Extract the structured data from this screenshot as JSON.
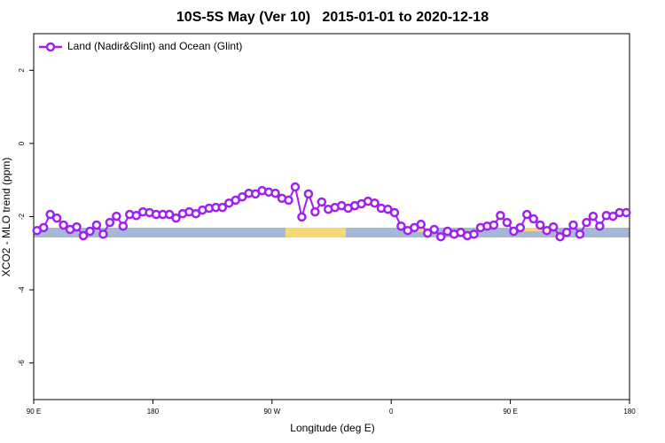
{
  "chart_data": {
    "type": "line",
    "title": "10S-5S May (Ver 10)   2015-01-01 to 2020-12-18",
    "xlabel": "Longitude (deg E)",
    "ylabel": "XCO2 - MLO trend (ppm)",
    "xlim": [
      90,
      540
    ],
    "ylim": [
      -7,
      3
    ],
    "xticks": [
      {
        "value": 90,
        "label": "90 E"
      },
      180,
      {
        "value": 270,
        "label": "90 W"
      },
      {
        "value": 360,
        "label": "0"
      },
      {
        "value": 450,
        "label": "90 E"
      },
      {
        "value": 540,
        "label": "180"
      }
    ],
    "yticks": [
      -6,
      -4,
      -2,
      0,
      2
    ],
    "legend": "top-left",
    "x": [
      92.5,
      97.5,
      102.5,
      107.5,
      112.5,
      117.5,
      122.5,
      127.5,
      132.5,
      137.5,
      142.5,
      147.5,
      152.5,
      157.5,
      162.5,
      167.5,
      172.5,
      177.5,
      182.5,
      187.5,
      192.5,
      197.5,
      202.5,
      207.5,
      212.5,
      217.5,
      222.5,
      227.5,
      232.5,
      237.5,
      242.5,
      247.5,
      252.5,
      257.5,
      262.5,
      267.5,
      272.5,
      277.5,
      282.5,
      287.5,
      292.5,
      297.5,
      302.5,
      307.5,
      312.5,
      317.5,
      322.5,
      327.5,
      332.5,
      337.5,
      342.5,
      347.5,
      352.5,
      357.5,
      362.5,
      367.5,
      372.5,
      377.5,
      382.5,
      387.5,
      392.5,
      397.5,
      402.5,
      407.5,
      412.5,
      417.5,
      422.5,
      427.5,
      432.5,
      437.5,
      442.5,
      447.5,
      452.5,
      457.5,
      462.5,
      467.5,
      472.5,
      477.5,
      482.5,
      487.5,
      492.5,
      497.5,
      502.5,
      507.5,
      512.5,
      517.5,
      522.5,
      527.5,
      532.5,
      537.5
    ],
    "series": [
      {
        "name": "Land (Nadir&Glint) and Ocean (Glint)",
        "color": "#a020f0",
        "values": [
          -2.38,
          -2.3,
          -1.94,
          -2.04,
          -2.23,
          -2.35,
          -2.28,
          -2.52,
          -2.4,
          -2.23,
          -2.48,
          -2.16,
          -1.99,
          -2.26,
          -1.94,
          -1.97,
          -1.87,
          -1.89,
          -1.94,
          -1.94,
          -1.94,
          -2.04,
          -1.92,
          -1.87,
          -1.92,
          -1.82,
          -1.77,
          -1.75,
          -1.75,
          -1.63,
          -1.55,
          -1.46,
          -1.36,
          -1.38,
          -1.29,
          -1.33,
          -1.36,
          -1.5,
          -1.55,
          -1.19,
          -2.01,
          -1.38,
          -1.87,
          -1.6,
          -1.8,
          -1.75,
          -1.7,
          -1.77,
          -1.7,
          -1.65,
          -1.58,
          -1.63,
          -1.77,
          -1.8,
          -1.89,
          -2.26,
          -2.38,
          -2.3,
          -2.21,
          -2.45,
          -2.35,
          -2.55,
          -2.4,
          -2.48,
          -2.43,
          -2.52,
          -2.48,
          -2.3,
          -2.26,
          -2.23,
          -1.97,
          -2.16,
          -2.4,
          -2.3,
          -1.94,
          -2.06,
          -2.23,
          -2.38,
          -2.28,
          -2.55,
          -2.43,
          -2.23,
          -2.48,
          -2.16,
          -1.99,
          -2.26,
          -1.97,
          -1.99,
          -1.89,
          -1.89
        ]
      }
    ]
  }
}
